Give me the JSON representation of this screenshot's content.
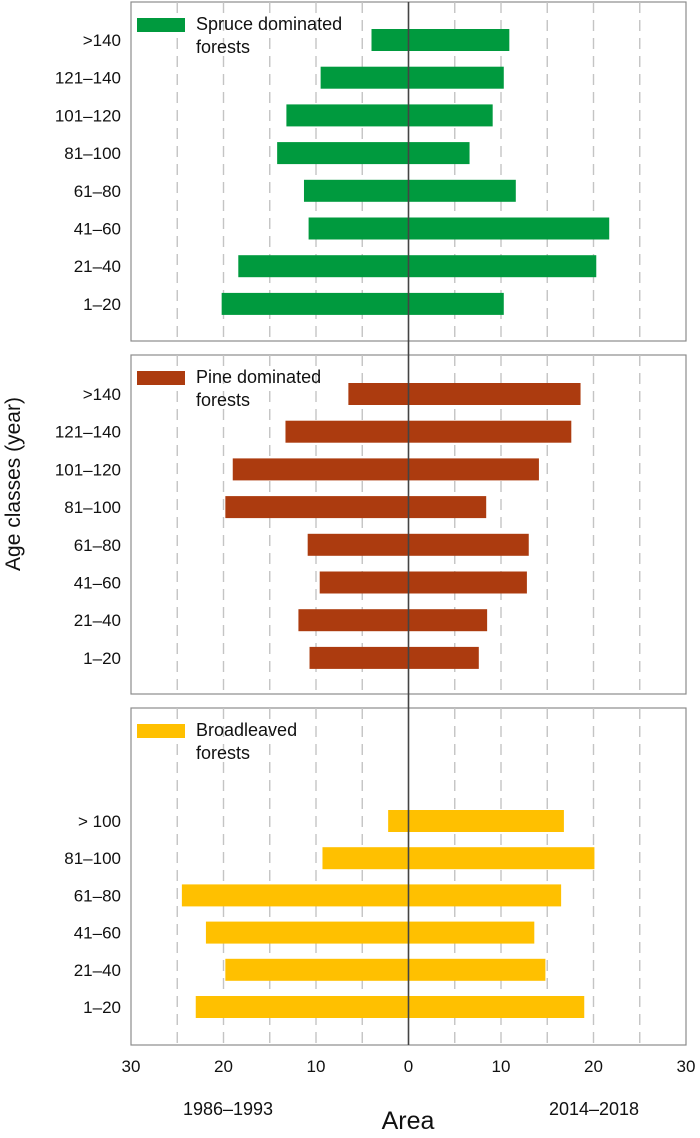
{
  "chart_data": {
    "type": "bar",
    "ylabel": "Age classes (year)",
    "xlabel": "Area",
    "xlim": [
      -30,
      30
    ],
    "x_ticks": [
      -30,
      -20,
      -10,
      0,
      10,
      20,
      30
    ],
    "x_tick_labels": [
      "30",
      "20",
      "10",
      "0",
      "10",
      "20",
      "30"
    ],
    "left_period_label": "1986–1993",
    "right_period_label": "2014–2018",
    "grid": "vertical dashed",
    "legend_position": "top-left",
    "panels": [
      {
        "legend_lines": [
          "Spruce dominated",
          "forests"
        ],
        "color": "#009a3e",
        "categories": [
          ">140",
          "121–140",
          "101–120",
          "81–100",
          "61–80",
          "41–60",
          "21–40",
          "1–20"
        ],
        "series": [
          {
            "name": "1986–1993",
            "values": [
              4,
              9.5,
              13.2,
              14.2,
              11.3,
              10.8,
              18.4,
              20.2
            ]
          },
          {
            "name": "2014–2018",
            "values": [
              10.9,
              10.3,
              9.1,
              6.6,
              11.6,
              21.7,
              20.3,
              10.3
            ]
          }
        ]
      },
      {
        "legend_lines": [
          "Pine dominated",
          "forests"
        ],
        "color": "#ac3b0f",
        "categories": [
          ">140",
          "121–140",
          "101–120",
          "81–100",
          "61–80",
          "41–60",
          "21–40",
          "1–20"
        ],
        "series": [
          {
            "name": "1986–1993",
            "values": [
              6.5,
              13.3,
              19,
              19.8,
              10.9,
              9.6,
              11.9,
              10.7
            ]
          },
          {
            "name": "2014–2018",
            "values": [
              18.6,
              17.6,
              14.1,
              8.4,
              13,
              12.8,
              8.5,
              7.6
            ]
          }
        ]
      },
      {
        "legend_lines": [
          "Broadleaved",
          "forests"
        ],
        "color": "#ffc000",
        "categories": [
          "> 100",
          "81–100",
          "61–80",
          "41–60",
          "21–40",
          "1–20"
        ],
        "series": [
          {
            "name": "1986–1993",
            "values": [
              2.2,
              9.3,
              24.5,
              21.9,
              19.8,
              23
            ]
          },
          {
            "name": "2014–2018",
            "values": [
              16.8,
              20.1,
              16.5,
              13.6,
              14.8,
              19
            ]
          }
        ]
      }
    ]
  }
}
